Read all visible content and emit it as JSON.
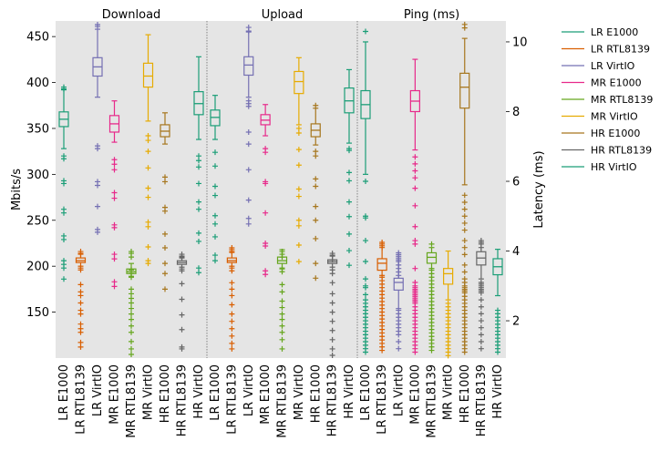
{
  "chart_data": {
    "type": "box",
    "categories": [
      "LR E1000",
      "LR RTL8139",
      "LR VirtIO",
      "MR E1000",
      "MR RTL8139",
      "MR VirtIO",
      "HR E1000",
      "HR RTL8139",
      "HR VirtIO"
    ],
    "colors": {
      "LR E1000": "#1b9e77",
      "LR RTL8139": "#d95f02",
      "LR VirtIO": "#7570b3",
      "MR E1000": "#e7298a",
      "MR RTL8139": "#66a61e",
      "MR VirtIO": "#e6ab02",
      "HR E1000": "#a6761d",
      "HR RTL8139": "#666666",
      "HR VirtIO": "#1b9e77"
    },
    "y_left": {
      "label": "Mbits/s",
      "range": [
        100,
        467
      ],
      "ticks": [
        150,
        200,
        250,
        300,
        350,
        400,
        450
      ]
    },
    "y_right": {
      "label": "Latency (ms)",
      "range": [
        0.93,
        10.6
      ],
      "ticks": [
        2,
        4,
        6,
        8,
        10
      ]
    },
    "grid": false,
    "legend_position": "outside-right",
    "panels": [
      {
        "title": "Download",
        "axis": "left",
        "boxes": [
          {
            "q1": 352,
            "median": 360,
            "q3": 368,
            "whislo": 328,
            "whishi": 392,
            "fliers": [
              395,
              393,
              320,
              317,
              293,
              290,
              262,
              258,
              233,
              229,
              206,
              202,
              198,
              186
            ]
          },
          {
            "q1": 204,
            "median": 206,
            "q3": 209,
            "whislo": 200,
            "whishi": 214,
            "fliers": [
              216,
              213,
              198,
              196,
              180,
              172,
              168,
              160,
              152,
              148,
              137,
              132,
              128,
              117,
              112
            ]
          },
          {
            "q1": 407,
            "median": 417,
            "q3": 427,
            "whislo": 384,
            "whishi": 458,
            "fliers": [
              463,
              461,
              331,
              328,
              292,
              288,
              265,
              240,
              237
            ]
          },
          {
            "q1": 346,
            "median": 355,
            "q3": 364,
            "whislo": 335,
            "whishi": 380,
            "fliers": [
              316,
              311,
              305,
              280,
              274,
              245,
              242,
              213,
              208,
              183,
              178
            ]
          },
          {
            "q1": 192,
            "median": 194,
            "q3": 197,
            "whislo": 189,
            "whishi": 203,
            "fliers": [
              216,
              214,
              210,
              196,
              192,
              188,
              175,
              170,
              165,
              160,
              154,
              148,
              142,
              135,
              128,
              118,
              110,
              104
            ]
          },
          {
            "q1": 395,
            "median": 407,
            "q3": 421,
            "whislo": 358,
            "whishi": 452,
            "fliers": [
              342,
              337,
              325,
              307,
              285,
              275,
              248,
              243,
              221,
              206,
              203
            ]
          },
          {
            "q1": 341,
            "median": 347,
            "q3": 354,
            "whislo": 333,
            "whishi": 367,
            "fliers": [
              297,
              292,
              264,
              260,
              235,
              220,
              203,
              192,
              175
            ]
          },
          {
            "q1": 202,
            "median": 204,
            "q3": 206,
            "whislo": 199,
            "whishi": 210,
            "fliers": [
              213,
              211,
              209,
              197,
              195,
              181,
              164,
              147,
              131,
              112,
              110
            ]
          },
          {
            "q1": 365,
            "median": 377,
            "q3": 390,
            "whislo": 338,
            "whishi": 428,
            "fliers": [
              320,
              315,
              308,
              290,
              270,
              262,
              236,
              227,
              198,
              193
            ]
          }
        ]
      },
      {
        "title": "Upload",
        "axis": "left",
        "boxes": [
          {
            "q1": 353,
            "median": 362,
            "q3": 370,
            "whislo": 338,
            "whishi": 386,
            "fliers": [
              324,
              309,
              287,
              277,
              255,
              246,
              232,
              212,
              206
            ]
          },
          {
            "q1": 204,
            "median": 206,
            "q3": 209,
            "whislo": 200,
            "whishi": 215,
            "fliers": [
              220,
              218,
              216,
              198,
              195,
              182,
              175,
              168,
              158,
              148,
              140,
              132,
              124,
              116,
              110
            ]
          },
          {
            "q1": 408,
            "median": 419,
            "q3": 428,
            "whislo": 384,
            "whishi": 455,
            "fliers": [
              460,
              456,
              380,
              377,
              374,
              346,
              333,
              305,
              272,
              252,
              246
            ]
          },
          {
            "q1": 354,
            "median": 359,
            "q3": 365,
            "whislo": 342,
            "whishi": 376,
            "fliers": [
              328,
              324,
              292,
              290,
              258,
              225,
              222,
              195,
              191
            ]
          },
          {
            "q1": 203,
            "median": 206,
            "q3": 210,
            "whislo": 198,
            "whishi": 218,
            "fliers": [
              216,
              213,
              210,
              197,
              194,
              180,
              172,
              162,
              155,
              148,
              142,
              135,
              128,
              120,
              110
            ]
          },
          {
            "q1": 388,
            "median": 401,
            "q3": 412,
            "whislo": 354,
            "whishi": 427,
            "fliers": [
              350,
              345,
              327,
              310,
              284,
              276,
              250,
              244,
              223,
              205
            ]
          },
          {
            "q1": 341,
            "median": 348,
            "q3": 355,
            "whislo": 332,
            "whishi": 372,
            "fliers": [
              375,
              325,
              320,
              295,
              287,
              265,
              250,
              230,
              203,
              187
            ]
          },
          {
            "q1": 203,
            "median": 205,
            "q3": 207,
            "whislo": 199,
            "whishi": 211,
            "fliers": [
              214,
              212,
              207,
              196,
              192,
              182,
              170,
              160,
              150,
              140,
              130,
              120,
              110,
              103
            ]
          },
          {
            "q1": 367,
            "median": 380,
            "q3": 394,
            "whislo": 334,
            "whishi": 414,
            "fliers": [
              328,
              326,
              302,
              293,
              270,
              254,
              235,
              217,
              201
            ]
          }
        ]
      },
      {
        "title": "Ping (ms)",
        "axis": "right",
        "boxes": [
          {
            "q1": 7.8,
            "median": 8.2,
            "q3": 8.6,
            "whislo": 6.2,
            "whishi": 10.0,
            "fliers": [
              10.3,
              6.0,
              5.0,
              4.95,
              4.3,
              3.7,
              3.2,
              3.0,
              2.95,
              2.75,
              2.6,
              2.5,
              2.4,
              2.3,
              2.2,
              2.1,
              2.0,
              1.9,
              1.8,
              1.7,
              1.6,
              1.5,
              1.4,
              1.3,
              1.2,
              1.1
            ]
          },
          {
            "q1": 3.45,
            "median": 3.65,
            "q3": 3.78,
            "whislo": 3.3,
            "whishi": 4.15,
            "fliers": [
              4.25,
              4.2,
              4.1,
              3.25,
              3.15,
              3.05,
              2.95,
              2.85,
              2.75,
              2.65,
              2.55,
              2.45,
              2.35,
              2.25,
              2.15,
              2.05,
              1.95,
              1.85,
              1.75,
              1.65,
              1.55,
              1.45,
              1.35,
              1.25,
              1.15
            ]
          },
          {
            "q1": 2.88,
            "median": 3.1,
            "q3": 3.22,
            "whislo": 2.35,
            "whishi": 3.85,
            "fliers": [
              3.95,
              3.9,
              3.8,
              3.75,
              3.7,
              3.6,
              3.5,
              3.4,
              3.3,
              2.3,
              2.2,
              2.1,
              2.0,
              1.9,
              1.8,
              1.7,
              1.6,
              1.4,
              1.2
            ]
          },
          {
            "q1": 8.0,
            "median": 8.3,
            "q3": 8.6,
            "whislo": 6.9,
            "whishi": 9.5,
            "fliers": [
              6.7,
              6.5,
              6.3,
              6.1,
              5.8,
              5.3,
              4.7,
              4.3,
              4.2,
              3.5,
              3.1,
              3.0,
              2.95,
              2.9,
              2.85,
              2.8,
              2.75,
              2.7,
              2.65,
              2.6,
              2.55,
              2.5,
              2.4,
              2.3,
              2.2,
              2.1,
              2.0,
              1.9,
              1.8,
              1.7,
              1.6,
              1.5,
              1.4,
              1.3,
              1.2,
              1.1
            ]
          },
          {
            "q1": 3.65,
            "median": 3.82,
            "q3": 3.95,
            "whislo": 3.5,
            "whishi": 4.1,
            "fliers": [
              4.2,
              3.45,
              3.35,
              3.25,
              3.15,
              3.05,
              2.95,
              2.85,
              2.75,
              2.65,
              2.55,
              2.45,
              2.35,
              2.25,
              2.15,
              2.05,
              1.95,
              1.85,
              1.75,
              1.65,
              1.55,
              1.45,
              1.35,
              1.25,
              1.15
            ]
          },
          {
            "q1": 3.05,
            "median": 3.35,
            "q3": 3.5,
            "whislo": 2.6,
            "whishi": 4.0,
            "fliers": [
              2.5,
              2.4,
              2.3,
              2.2,
              2.1,
              2.0,
              1.9,
              1.8,
              1.7,
              1.6,
              1.5,
              1.4,
              1.3,
              1.2,
              1.1,
              1.0
            ]
          },
          {
            "q1": 8.1,
            "median": 8.7,
            "q3": 9.1,
            "whislo": 5.9,
            "whishi": 10.1,
            "fliers": [
              10.5,
              10.4,
              5.6,
              5.4,
              5.2,
              5.0,
              4.8,
              4.6,
              4.3,
              4.1,
              3.9,
              3.6,
              3.4,
              3.2,
              3.1,
              3.0,
              2.95,
              2.9,
              2.85,
              2.8,
              2.7,
              2.6,
              2.5,
              2.4,
              2.3,
              2.2,
              2.1,
              2.0,
              1.9,
              1.8,
              1.7,
              1.6,
              1.5,
              1.4,
              1.3,
              1.2,
              1.1
            ]
          },
          {
            "q1": 3.6,
            "median": 3.8,
            "q3": 3.98,
            "whislo": 3.2,
            "whishi": 4.2,
            "fliers": [
              4.3,
              4.25,
              4.1,
              3.1,
              3.05,
              3.0,
              2.95,
              2.9,
              2.85,
              2.8,
              2.6,
              2.4,
              2.2,
              2.0,
              1.8,
              1.6,
              1.4,
              1.2
            ]
          },
          {
            "q1": 3.32,
            "median": 3.55,
            "q3": 3.78,
            "whislo": 2.72,
            "whishi": 4.05,
            "fliers": [
              2.3,
              2.2,
              2.1,
              2.0,
              1.9,
              1.8,
              1.7,
              1.6,
              1.5,
              1.4,
              1.3,
              1.2,
              1.1
            ]
          }
        ]
      }
    ]
  }
}
